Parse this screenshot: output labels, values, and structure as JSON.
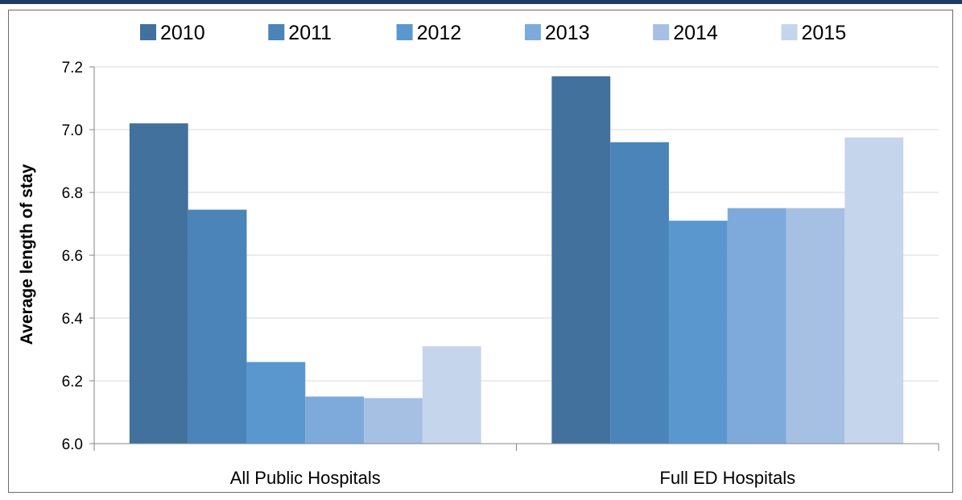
{
  "chart_data": {
    "type": "bar",
    "title": "",
    "xlabel": "",
    "ylabel": "Average length of stay",
    "categories": [
      "All Public Hospitals",
      "Full ED Hospitals"
    ],
    "series": [
      {
        "name": "2010",
        "values": [
          7.02,
          7.17
        ],
        "color": "#41719c"
      },
      {
        "name": "2011",
        "values": [
          6.745,
          6.96
        ],
        "color": "#4a84b8"
      },
      {
        "name": "2012",
        "values": [
          6.26,
          6.71
        ],
        "color": "#5b97cf"
      },
      {
        "name": "2013",
        "values": [
          6.15,
          6.75
        ],
        "color": "#7eaadb"
      },
      {
        "name": "2014",
        "values": [
          6.145,
          6.75
        ],
        "color": "#a6c0e4"
      },
      {
        "name": "2015",
        "values": [
          6.31,
          6.975
        ],
        "color": "#c5d5ec"
      }
    ],
    "ylim": [
      6.0,
      7.2
    ],
    "yticks": [
      "6.0",
      "6.2",
      "6.4",
      "6.6",
      "6.8",
      "7.0",
      "7.2"
    ],
    "grid": true,
    "legend_position": "top"
  }
}
